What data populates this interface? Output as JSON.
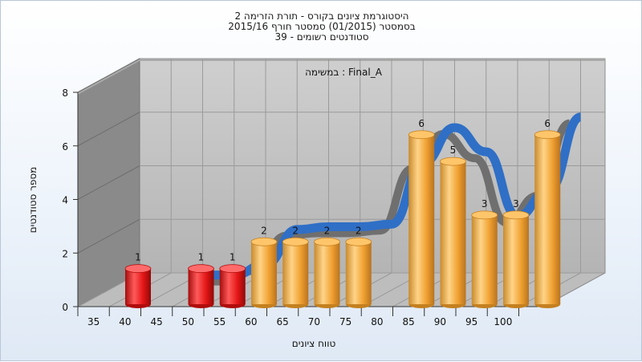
{
  "chart_data": {
    "type": "bar",
    "title_lines": [
      "היסטוגרמת ציונים בקורס - תורת הזרימה 2",
      "בסמסטר  (01/2015)  סמסטר חורף 2015/16",
      "סטודנטים רשומים - 39"
    ],
    "subtitle": "במשימה : Final_A",
    "xlabel": "טווח ציונים",
    "ylabel": "מספר סטודנטים",
    "ylim": [
      0,
      8
    ],
    "yticks": [
      0,
      2,
      4,
      6,
      8
    ],
    "xticks": [
      "35",
      "40",
      "45",
      "50",
      "55",
      "60",
      "65",
      "70",
      "75",
      "80",
      "85",
      "90",
      "95",
      "100"
    ],
    "series": [
      {
        "values": [
          {
            "x": 35,
            "y": 1,
            "color": "#e41515"
          },
          {
            "x": 45,
            "y": 1,
            "color": "#e41515"
          },
          {
            "x": 50,
            "y": 1,
            "color": "#e41515"
          },
          {
            "x": 55,
            "y": 2,
            "color": "#f0a030"
          },
          {
            "x": 60,
            "y": 2,
            "color": "#f0a030"
          },
          {
            "x": 65,
            "y": 2,
            "color": "#f0a030"
          },
          {
            "x": 70,
            "y": 2,
            "color": "#f0a030"
          },
          {
            "x": 80,
            "y": 6,
            "color": "#f0a030"
          },
          {
            "x": 85,
            "y": 5,
            "color": "#f0a030"
          },
          {
            "x": 90,
            "y": 3,
            "color": "#f0a030"
          },
          {
            "x": 95,
            "y": 3,
            "color": "#f0a030"
          },
          {
            "x": 100,
            "y": 6,
            "color": "#f0a030"
          }
        ]
      },
      {
        "type": "line",
        "color": "#2f6fc6",
        "values": [
          {
            "x": 45,
            "y": 1
          },
          {
            "x": 50,
            "y": 1
          },
          {
            "x": 55,
            "y": 1.4
          },
          {
            "x": 60,
            "y": 2.7
          },
          {
            "x": 65,
            "y": 2.8
          },
          {
            "x": 70,
            "y": 2.8
          },
          {
            "x": 75,
            "y": 2.9
          },
          {
            "x": 80,
            "y": 5.2
          },
          {
            "x": 85,
            "y": 6.5
          },
          {
            "x": 90,
            "y": 5.6
          },
          {
            "x": 95,
            "y": 3.2
          },
          {
            "x": 100,
            "y": 4.2
          },
          {
            "x": 105,
            "y": 6.9
          }
        ]
      }
    ],
    "grid": true,
    "colors": {
      "back_wall": "#c3c3c3",
      "side_wall": "#8a8a8a",
      "floor": "#bdbdbd",
      "grid": "#9a9a9a",
      "red": "#e41515",
      "orange": "#f0a030",
      "line": "#2f6fc6"
    }
  }
}
